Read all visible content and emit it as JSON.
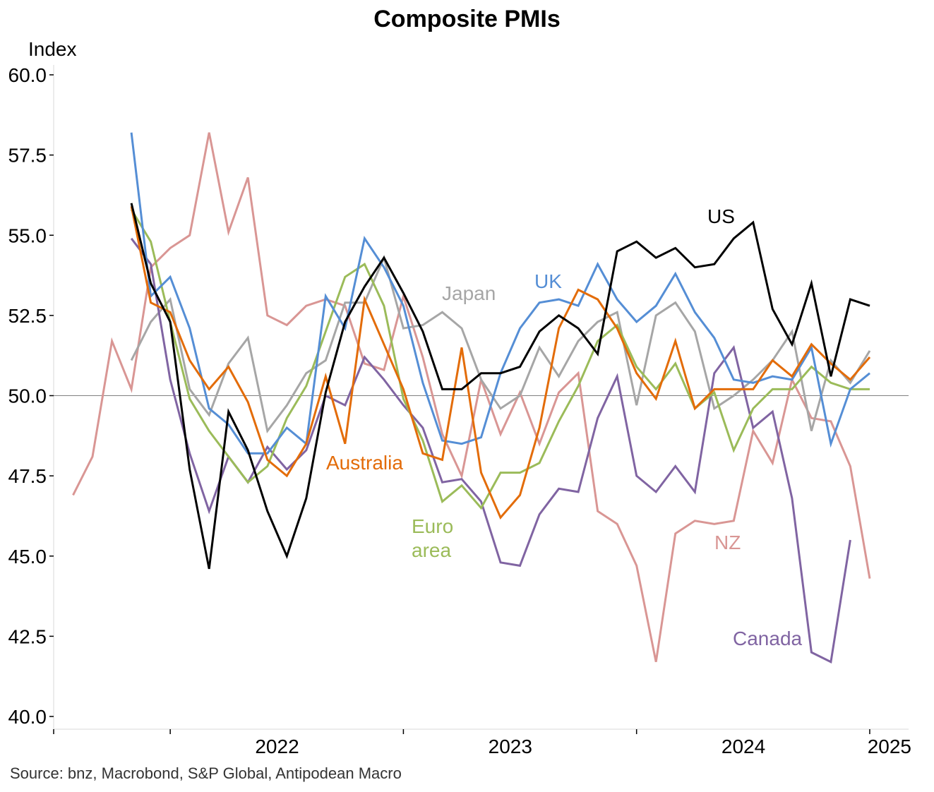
{
  "title": "Composite PMIs",
  "y_unit": "Index",
  "source": "Source: bnz, Macrobond, S&P Global, Antipodean Macro",
  "chart_data": {
    "type": "line",
    "title": "Composite PMIs",
    "ylabel": "Index",
    "xlabel": "",
    "ylim": [
      40.0,
      60.0
    ],
    "xlim": [
      "2021-07",
      "2025-03"
    ],
    "y_ticks": [
      "40.0",
      "42.5",
      "45.0",
      "47.5",
      "50.0",
      "52.5",
      "55.0",
      "57.5",
      "60.0"
    ],
    "x_ticks": [
      "2022",
      "2023",
      "2024",
      "2025"
    ],
    "reference_line": 50.0,
    "grid": false,
    "series": [
      {
        "name": "NZ",
        "color": "#d99694",
        "start": "2021-08",
        "values": [
          46.9,
          48.1,
          51.7,
          50.2,
          54.0,
          54.6,
          55.0,
          58.2,
          55.1,
          56.8,
          52.5,
          52.2,
          52.8,
          53.0,
          52.8,
          51.0,
          50.8,
          53.1,
          51.2,
          48.8,
          47.5,
          50.5,
          48.8,
          50.1,
          48.5,
          50.1,
          50.7,
          46.4,
          46.0,
          44.7,
          41.7,
          45.7,
          46.1,
          46.0,
          46.1,
          48.9,
          47.9,
          50.5,
          49.3,
          49.2,
          47.8,
          44.3
        ]
      },
      {
        "name": "UK",
        "color": "#558ed5",
        "start": "2021-11",
        "values": [
          58.2,
          53.1,
          53.7,
          52.1,
          49.6,
          49.1,
          48.2,
          48.2,
          49.0,
          48.5,
          53.1,
          52.1,
          54.9,
          54.0,
          52.8,
          50.4,
          48.6,
          48.5,
          48.7,
          50.7,
          52.1,
          52.9,
          53.0,
          52.8,
          54.1,
          53.0,
          52.3,
          52.8,
          53.8,
          52.6,
          51.8,
          50.5,
          50.4,
          50.6,
          50.5,
          51.5,
          48.5,
          50.2,
          50.7
        ]
      },
      {
        "name": "US",
        "color": "#000000",
        "start": "2021-11",
        "values": [
          56.0,
          53.5,
          52.3,
          47.7,
          44.6,
          49.5,
          48.3,
          46.4,
          45.0,
          46.8,
          50.1,
          52.3,
          53.4,
          54.3,
          53.2,
          52.0,
          50.2,
          50.2,
          50.7,
          50.7,
          50.9,
          52.0,
          52.5,
          52.1,
          51.3,
          54.5,
          54.8,
          54.3,
          54.6,
          54.0,
          54.1,
          54.9,
          55.4,
          52.7,
          51.6,
          53.5,
          50.6,
          53.0,
          52.8
        ]
      },
      {
        "name": "Japan",
        "color": "#a6a6a6",
        "start": "2021-11",
        "values": [
          51.1,
          52.3,
          53.0,
          50.2,
          49.4,
          51.0,
          51.8,
          48.9,
          49.7,
          50.7,
          51.1,
          52.9,
          52.9,
          54.3,
          52.1,
          52.2,
          52.6,
          52.1,
          50.5,
          49.6,
          50.0,
          51.5,
          50.6,
          51.7,
          52.3,
          52.6,
          49.7,
          52.5,
          52.9,
          52.0,
          49.6,
          50.0,
          50.5,
          51.1,
          52.0,
          48.9,
          51.1,
          50.4,
          51.4
        ]
      },
      {
        "name": "Australia",
        "color": "#e36c09",
        "start": "2021-11",
        "values": [
          55.9,
          52.9,
          52.6,
          51.1,
          50.2,
          50.9,
          49.8,
          48.0,
          47.5,
          48.5,
          50.6,
          48.5,
          53.0,
          51.6,
          50.2,
          48.2,
          48.0,
          51.5,
          47.6,
          46.2,
          46.9,
          49.0,
          52.1,
          53.3,
          53.0,
          52.1,
          50.7,
          49.9,
          51.7,
          49.6,
          50.2,
          50.2,
          50.2,
          51.1,
          50.6,
          51.6,
          51.0,
          50.5,
          51.2
        ]
      },
      {
        "name": "Euro area",
        "color": "#9bbb59",
        "start": "2021-11",
        "values": [
          55.8,
          54.8,
          52.3,
          49.9,
          48.9,
          48.1,
          47.3,
          47.8,
          49.3,
          50.3,
          52.0,
          53.7,
          54.1,
          52.8,
          49.9,
          48.6,
          46.7,
          47.2,
          46.5,
          47.6,
          47.6,
          47.9,
          49.2,
          50.3,
          51.7,
          52.2,
          50.9,
          50.2,
          51.0,
          49.6,
          50.1,
          48.3,
          49.6,
          50.2,
          50.2,
          50.9,
          50.4,
          50.2,
          50.2
        ]
      },
      {
        "name": "Canada",
        "color": "#8064a2",
        "start": "2021-11",
        "values": [
          54.9,
          54.1,
          50.5,
          48.2,
          46.4,
          48.1,
          47.3,
          48.4,
          47.7,
          48.3,
          50.0,
          49.7,
          51.2,
          50.5,
          49.7,
          49.0,
          47.3,
          47.4,
          46.7,
          44.8,
          44.7,
          46.3,
          47.1,
          47.0,
          49.3,
          50.6,
          47.5,
          47.0,
          47.8,
          47.0,
          50.7,
          51.5,
          49.0,
          49.5,
          46.8,
          42.0,
          41.7,
          45.5
        ]
      }
    ],
    "series_labels": [
      {
        "text": "US",
        "color": "#000000"
      },
      {
        "text": "UK",
        "color": "#558ed5"
      },
      {
        "text": "Japan",
        "color": "#a6a6a6"
      },
      {
        "text": "Australia",
        "color": "#e36c09"
      },
      {
        "text": "Euro",
        "color": "#9bbb59"
      },
      {
        "text": "area",
        "color": "#9bbb59"
      },
      {
        "text": "NZ",
        "color": "#d99694"
      },
      {
        "text": "Canada",
        "color": "#8064a2"
      }
    ]
  }
}
